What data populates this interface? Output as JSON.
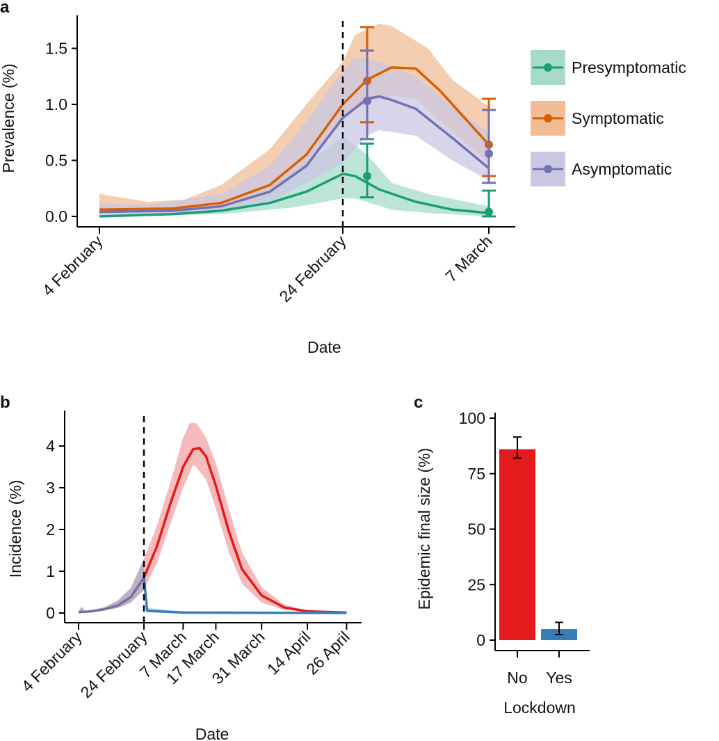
{
  "chart_data": [
    {
      "panel": "a",
      "type": "line",
      "xlabel": "Date",
      "ylabel": "Prevalence (%)",
      "ylim": [
        0,
        1.75
      ],
      "yticks": [
        "0.0",
        "0.5",
        "1.0",
        "1.5"
      ],
      "xticks": [
        {
          "date": "02-04",
          "label": "4 February"
        },
        {
          "date": "02-24",
          "label": "24 February"
        },
        {
          "date": "03-07",
          "label": "7 March"
        }
      ],
      "vline": "02-24",
      "grid": false,
      "legend": "right",
      "series": [
        {
          "name": "Presymptomatic",
          "color": "#1b9e77",
          "band_color": "#a6dbc9",
          "mean": [
            [
              "02-04",
              0
            ],
            [
              "02-10",
              0.02
            ],
            [
              "02-14",
              0.05
            ],
            [
              "02-18",
              0.12
            ],
            [
              "02-21",
              0.22
            ],
            [
              "02-24",
              0.38
            ],
            [
              "02-25",
              0.36
            ],
            [
              "02-27",
              0.24
            ],
            [
              "03-01",
              0.13
            ],
            [
              "03-04",
              0.06
            ],
            [
              "03-07",
              0.03
            ]
          ],
          "lower": [
            [
              "02-04",
              0
            ],
            [
              "02-14",
              0.02
            ],
            [
              "02-20",
              0.08
            ],
            [
              "02-24",
              0.16
            ],
            [
              "02-25",
              0.16
            ],
            [
              "02-28",
              0.06
            ],
            [
              "03-02",
              0.03
            ],
            [
              "03-07",
              0.0
            ]
          ],
          "upper": [
            [
              "02-04",
              0
            ],
            [
              "02-14",
              0.08
            ],
            [
              "02-18",
              0.28
            ],
            [
              "02-22",
              0.55
            ],
            [
              "02-24",
              0.72
            ],
            [
              "02-26",
              0.55
            ],
            [
              "02-28",
              0.3
            ],
            [
              "03-02",
              0.2
            ],
            [
              "03-07",
              0.09
            ]
          ],
          "observed": [
            {
              "date": "02-26",
              "value": 0.36,
              "ci": [
                0.17,
                0.65
              ]
            },
            {
              "date": "03-07",
              "value": 0.04,
              "ci": [
                0,
                0.23
              ]
            }
          ]
        },
        {
          "name": "Symptomatic",
          "color": "#d95f02",
          "band_color": "#f0bd96",
          "mean": [
            [
              "02-04",
              0.06
            ],
            [
              "02-10",
              0.07
            ],
            [
              "02-14",
              0.12
            ],
            [
              "02-18",
              0.28
            ],
            [
              "02-21",
              0.55
            ],
            [
              "02-24",
              1.0
            ],
            [
              "02-26",
              1.22
            ],
            [
              "02-28",
              1.33
            ],
            [
              "03-01",
              1.32
            ],
            [
              "03-03",
              1.12
            ],
            [
              "03-05",
              0.88
            ],
            [
              "03-07",
              0.64
            ]
          ],
          "lower": [
            [
              "02-04",
              0.03
            ],
            [
              "02-10",
              0.04
            ],
            [
              "02-14",
              0.08
            ],
            [
              "02-18",
              0.22
            ],
            [
              "02-21",
              0.45
            ],
            [
              "02-24",
              0.85
            ],
            [
              "02-26",
              1.02
            ],
            [
              "02-28",
              1.08
            ],
            [
              "03-01",
              1.05
            ],
            [
              "03-03",
              0.85
            ],
            [
              "03-07",
              0.48
            ]
          ],
          "upper": [
            [
              "02-04",
              0.2
            ],
            [
              "02-08",
              0.13
            ],
            [
              "02-11",
              0.15
            ],
            [
              "02-14",
              0.28
            ],
            [
              "02-18",
              0.6
            ],
            [
              "02-21",
              1.0
            ],
            [
              "02-24",
              1.38
            ],
            [
              "02-25",
              1.62
            ],
            [
              "02-27",
              1.72
            ],
            [
              "02-28",
              1.7
            ],
            [
              "03-02",
              1.5
            ],
            [
              "03-04",
              1.22
            ],
            [
              "03-07",
              0.98
            ]
          ],
          "observed": [
            {
              "date": "02-26",
              "value": 1.21,
              "ci": [
                0.84,
                1.69
              ]
            },
            {
              "date": "03-07",
              "value": 0.64,
              "ci": [
                0.36,
                1.05
              ]
            }
          ]
        },
        {
          "name": "Asymptomatic",
          "color": "#7570b3",
          "band_color": "#c9c7e2",
          "mean": [
            [
              "02-04",
              0.04
            ],
            [
              "02-10",
              0.05
            ],
            [
              "02-14",
              0.09
            ],
            [
              "02-18",
              0.22
            ],
            [
              "02-21",
              0.45
            ],
            [
              "02-24",
              0.88
            ],
            [
              "02-26",
              1.05
            ],
            [
              "02-27",
              1.07
            ],
            [
              "02-28",
              1.04
            ],
            [
              "03-01",
              0.96
            ],
            [
              "03-04",
              0.7
            ],
            [
              "03-07",
              0.43
            ]
          ],
          "lower": [
            [
              "02-04",
              0.01
            ],
            [
              "02-10",
              0.02
            ],
            [
              "02-14",
              0.05
            ],
            [
              "02-18",
              0.13
            ],
            [
              "02-21",
              0.3
            ],
            [
              "02-24",
              0.48
            ],
            [
              "02-26",
              0.72
            ],
            [
              "02-27",
              0.77
            ],
            [
              "03-01",
              0.72
            ],
            [
              "03-04",
              0.5
            ],
            [
              "03-07",
              0.32
            ]
          ],
          "upper": [
            [
              "02-04",
              0.12
            ],
            [
              "02-08",
              0.1
            ],
            [
              "02-14",
              0.2
            ],
            [
              "02-18",
              0.45
            ],
            [
              "02-21",
              0.85
            ],
            [
              "02-24",
              1.3
            ],
            [
              "02-25",
              1.42
            ],
            [
              "02-27",
              1.38
            ],
            [
              "03-01",
              1.25
            ],
            [
              "03-04",
              0.98
            ],
            [
              "03-07",
              0.75
            ]
          ],
          "observed": [
            {
              "date": "02-26",
              "value": 1.03,
              "ci": [
                0.69,
                1.48
              ]
            },
            {
              "date": "03-07",
              "value": 0.56,
              "ci": [
                0.3,
                0.95
              ]
            }
          ]
        }
      ]
    },
    {
      "panel": "b",
      "type": "line",
      "xlabel": "Date",
      "ylabel": "Incidence (%)",
      "ylim": [
        0,
        4.8
      ],
      "yticks": [
        "0",
        "1",
        "2",
        "3",
        "4"
      ],
      "xticks": [
        {
          "date": "02-04",
          "label": "4 February"
        },
        {
          "date": "02-24",
          "label": "24 February"
        },
        {
          "date": "03-07",
          "label": "7 March"
        },
        {
          "date": "03-17",
          "label": "17 March"
        },
        {
          "date": "03-31",
          "label": "31 March"
        },
        {
          "date": "04-14",
          "label": "14 April"
        },
        {
          "date": "04-26",
          "label": "26 April"
        }
      ],
      "vline": "02-24",
      "grid": false,
      "series": [
        {
          "color": "#7a6d9e",
          "band_color": "#a796b3",
          "mean": [
            [
              "02-04",
              0.02
            ],
            [
              "02-08",
              0.04
            ],
            [
              "02-12",
              0.09
            ],
            [
              "02-16",
              0.18
            ],
            [
              "02-20",
              0.38
            ],
            [
              "02-24",
              0.85
            ]
          ],
          "lower": [
            [
              "02-04",
              0.0
            ],
            [
              "02-12",
              0.06
            ],
            [
              "02-16",
              0.12
            ],
            [
              "02-20",
              0.25
            ],
            [
              "02-24",
              0.55
            ]
          ],
          "upper": [
            [
              "02-04",
              0.05
            ],
            [
              "02-05",
              0.15
            ],
            [
              "02-06",
              0.04
            ],
            [
              "02-12",
              0.14
            ],
            [
              "02-16",
              0.3
            ],
            [
              "02-20",
              0.6
            ],
            [
              "02-24",
              1.3
            ]
          ]
        },
        {
          "color": "#e41a1c",
          "band_color": "#f2a4a5",
          "mean": [
            [
              "02-24",
              0.85
            ],
            [
              "02-28",
              1.6
            ],
            [
              "03-03",
              2.6
            ],
            [
              "03-07",
              3.5
            ],
            [
              "03-10",
              3.92
            ],
            [
              "03-12",
              3.95
            ],
            [
              "03-14",
              3.75
            ],
            [
              "03-17",
              3.05
            ],
            [
              "03-21",
              1.95
            ],
            [
              "03-25",
              1.05
            ],
            [
              "03-31",
              0.42
            ],
            [
              "04-07",
              0.13
            ],
            [
              "04-14",
              0.04
            ],
            [
              "04-26",
              0.01
            ]
          ],
          "lower": [
            [
              "02-24",
              0.55
            ],
            [
              "02-28",
              1.2
            ],
            [
              "03-03",
              2.1
            ],
            [
              "03-07",
              3.0
            ],
            [
              "03-10",
              3.55
            ],
            [
              "03-11",
              3.5
            ],
            [
              "03-14",
              3.2
            ],
            [
              "03-17",
              2.5
            ],
            [
              "03-21",
              1.45
            ],
            [
              "03-25",
              0.7
            ],
            [
              "03-31",
              0.25
            ],
            [
              "04-07",
              0.07
            ],
            [
              "04-26",
              0.0
            ]
          ],
          "upper": [
            [
              "02-24",
              1.3
            ],
            [
              "02-28",
              2.1
            ],
            [
              "03-03",
              3.1
            ],
            [
              "03-07",
              4.2
            ],
            [
              "03-09",
              4.55
            ],
            [
              "03-11",
              4.55
            ],
            [
              "03-14",
              4.2
            ],
            [
              "03-17",
              3.6
            ],
            [
              "03-21",
              2.5
            ],
            [
              "03-25",
              1.45
            ],
            [
              "03-31",
              0.62
            ],
            [
              "04-07",
              0.2
            ],
            [
              "04-14",
              0.06
            ],
            [
              "04-26",
              0.02
            ]
          ]
        },
        {
          "color": "#377eb8",
          "band_color": "#a9c6e0",
          "mean": [
            [
              "02-24",
              0.85
            ],
            [
              "02-25",
              0.05
            ],
            [
              "03-07",
              0.01
            ],
            [
              "04-26",
              0.0
            ]
          ],
          "lower": [
            [
              "02-24",
              0.8
            ],
            [
              "02-25",
              0.03
            ],
            [
              "04-26",
              0.0
            ]
          ],
          "upper": [
            [
              "02-24",
              0.9
            ],
            [
              "02-25",
              0.12
            ],
            [
              "03-07",
              0.04
            ],
            [
              "04-26",
              0.01
            ]
          ]
        }
      ]
    },
    {
      "panel": "c",
      "type": "bar",
      "xlabel": "Lockdown",
      "ylabel": "Epidemic final size (%)",
      "ylim": [
        0,
        100
      ],
      "yticks": [
        "0",
        "25",
        "50",
        "75",
        "100"
      ],
      "categories": [
        "No",
        "Yes"
      ],
      "values": [
        86,
        5
      ],
      "ci": [
        [
          82,
          91.5
        ],
        [
          2.5,
          8
        ]
      ],
      "colors": [
        "#e41a1c",
        "#377eb8"
      ]
    }
  ]
}
